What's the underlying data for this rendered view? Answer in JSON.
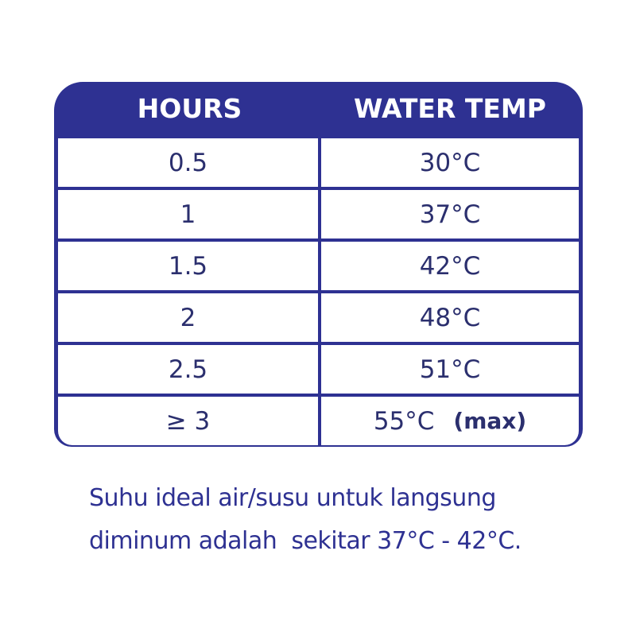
{
  "table": {
    "headers": [
      "HOURS",
      "WATER TEMP"
    ],
    "rows": [
      {
        "hours": "0.5",
        "temp": "30°C"
      },
      {
        "hours": "1",
        "temp": "37°C"
      },
      {
        "hours": "1.5",
        "temp": "42°C"
      },
      {
        "hours": "2",
        "temp": "48°C"
      },
      {
        "hours": "2.5",
        "temp": "51°C"
      },
      {
        "hours": "≥ 3",
        "temp": "55°C",
        "note": "(max)"
      }
    ]
  },
  "caption": {
    "line1": "Suhu ideal air/susu untuk langsung",
    "line2": "diminum adalah  sekitar 37°C - 42°C."
  },
  "colors": {
    "brand": "#2e3192",
    "text": "#2b2f6e"
  }
}
